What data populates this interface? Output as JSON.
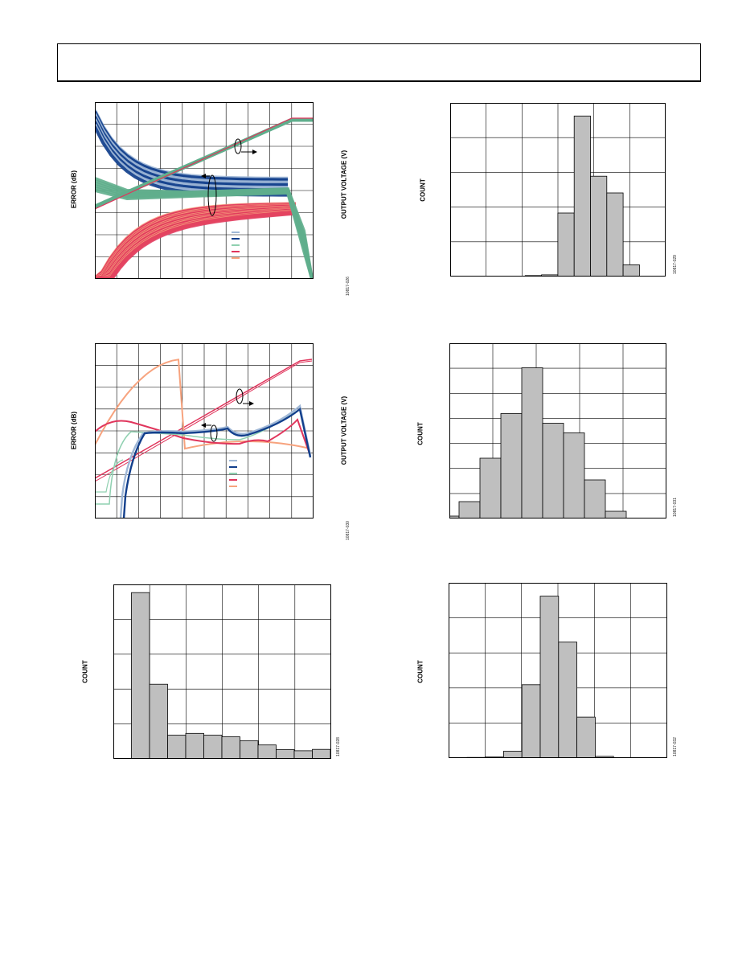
{
  "chart_data": [
    {
      "type": "line",
      "ylabel": "ERROR (dB)",
      "y2label": "OUTPUT VOLTAGE (V)",
      "figure_id": "10817-026",
      "colors": [
        "#9fb7d6",
        "#123f8c",
        "#8fd0b0",
        "#e0355c",
        "#f7a37e"
      ],
      "series_colors": {
        "curve_1": "#9fb7d6",
        "curve_2": "#123f8c",
        "curve_3": "#8fd0b0",
        "curve_4": "#e0355c",
        "curve_5": "#f7a37e",
        "output_voltage": "#5fae8c"
      }
    },
    {
      "type": "bar",
      "ylabel": "COUNT",
      "figure_id": "10817-029",
      "values": [
        0,
        0.3,
        0.5,
        19,
        48,
        30,
        25,
        3.5,
        0
      ],
      "ylim": [
        0,
        50
      ]
    },
    {
      "type": "line",
      "ylabel": "ERROR (dB)",
      "y2label": "OUTPUT VOLTAGE (V)",
      "figure_id": "10817-030",
      "colors": [
        "#9fb7d6",
        "#123f8c",
        "#8fd0b0",
        "#e0355c",
        "#f7a37e"
      ]
    },
    {
      "type": "bar",
      "ylabel": "COUNT",
      "figure_id": "10817-031",
      "values": [
        1,
        7,
        25,
        43.5,
        62.5,
        39.5,
        35.5,
        16,
        3,
        0
      ],
      "ylim": [
        0,
        70
      ]
    },
    {
      "type": "bar",
      "ylabel": "COUNT",
      "figure_id": "10817-028",
      "values": [
        0,
        49,
        22,
        7,
        7.5,
        7,
        6.5,
        5.3,
        4.1,
        2.7,
        2.4,
        2.8
      ],
      "ylim": [
        0,
        50
      ]
    },
    {
      "type": "bar",
      "ylabel": "COUNT",
      "figure_id": "10817-032",
      "values": [
        0,
        0.2,
        0.3,
        2,
        21.5,
        47.5,
        34,
        12,
        0.5,
        0
      ],
      "ylim": [
        0,
        50
      ]
    }
  ]
}
